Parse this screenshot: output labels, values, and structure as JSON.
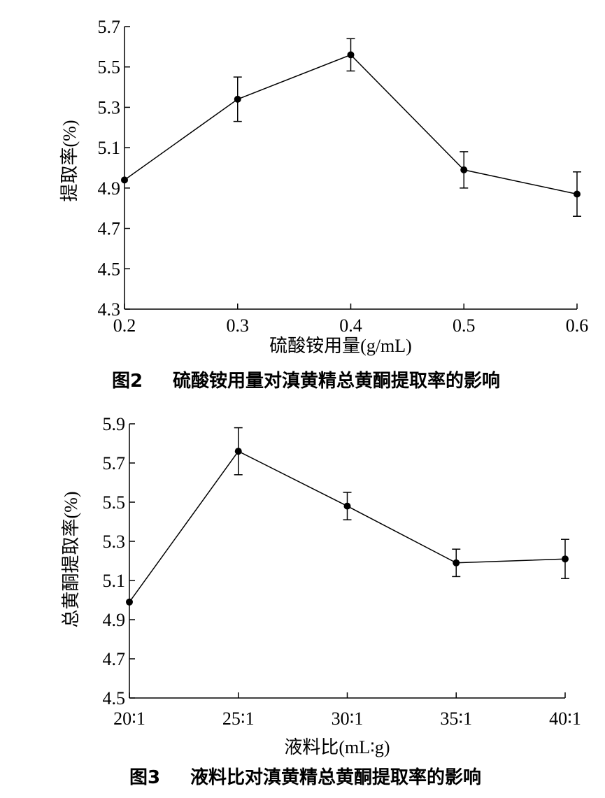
{
  "chart_data": [
    {
      "type": "line",
      "caption_num": "图2",
      "caption_text": "硫酸铵用量对滇黄精总黄酮提取率的影响",
      "xlabel": "硫酸铵用量(g/mL)",
      "ylabel": "提取率(%)",
      "x": [
        0.2,
        0.3,
        0.4,
        0.5,
        0.6
      ],
      "x_ticks": [
        "0.2",
        "0.3",
        "0.4",
        "0.5",
        "0.6"
      ],
      "values": [
        4.94,
        5.34,
        5.56,
        4.99,
        4.87
      ],
      "errors": [
        0.0,
        0.11,
        0.08,
        0.09,
        0.11
      ],
      "ylim": [
        4.3,
        5.7
      ],
      "y_ticks": [
        "4.3",
        "4.5",
        "4.7",
        "4.9",
        "5.1",
        "5.3",
        "5.5",
        "5.7"
      ]
    },
    {
      "type": "line",
      "caption_num": "图3",
      "caption_text": "液料比对滇黄精总黄酮提取率的影响",
      "xlabel": "液料比(mL∶g)",
      "ylabel": "总黄酮提取率(%)",
      "x": [
        "20∶1",
        "25∶1",
        "30∶1",
        "35∶1",
        "40∶1"
      ],
      "x_ticks": [
        "20∶1",
        "25∶1",
        "30∶1",
        "35∶1",
        "40∶1"
      ],
      "values": [
        4.99,
        5.76,
        5.48,
        5.19,
        5.21
      ],
      "errors": [
        0.0,
        0.12,
        0.07,
        0.07,
        0.1
      ],
      "ylim": [
        4.5,
        5.9
      ],
      "y_ticks": [
        "4.5",
        "4.7",
        "4.9",
        "5.1",
        "5.3",
        "5.5",
        "5.7",
        "5.9"
      ]
    }
  ]
}
